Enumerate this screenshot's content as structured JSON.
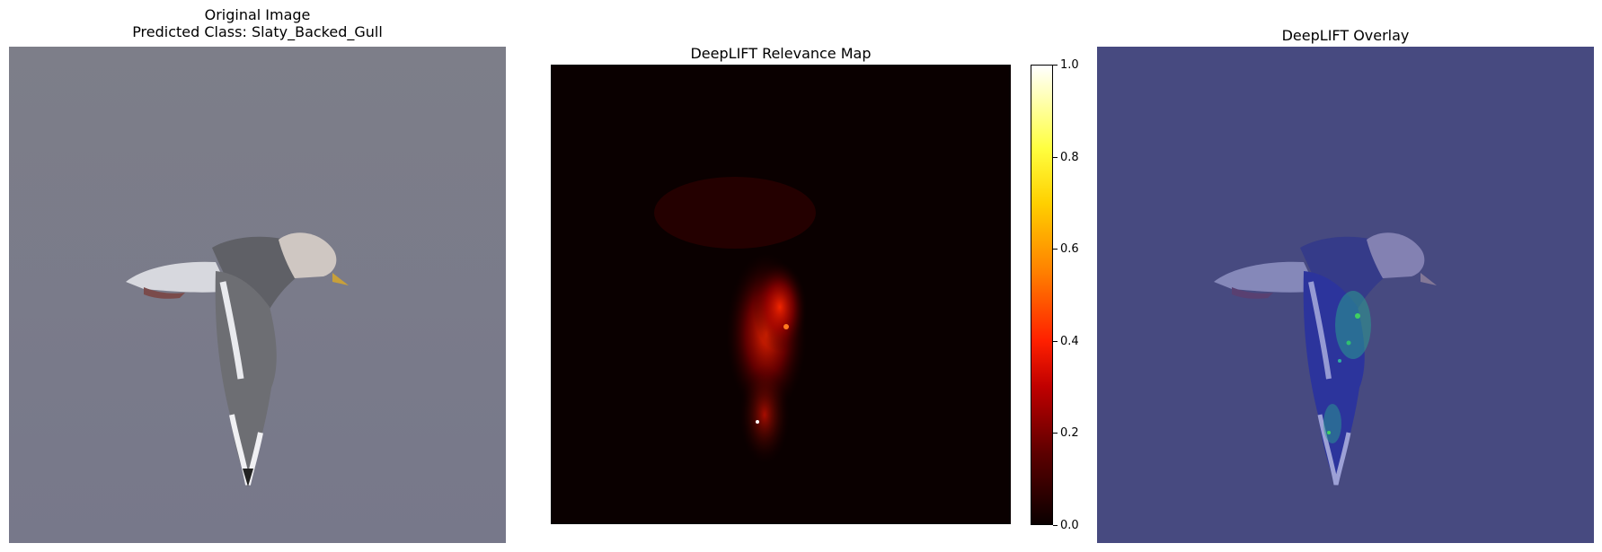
{
  "panels": [
    {
      "title_line1": "Original Image",
      "title_line2": "Predicted Class: Slaty_Backed_Gull"
    },
    {
      "title": "DeepLIFT Relevance Map"
    },
    {
      "title": "DeepLIFT Overlay"
    }
  ],
  "colorbar": {
    "colormap": "hot",
    "range": [
      0.0,
      1.0
    ],
    "ticks": [
      "0.0",
      "0.2",
      "0.4",
      "0.6",
      "0.8",
      "1.0"
    ]
  },
  "colors": {
    "original_background": "#7a7b87",
    "relevance_background": "#0a0000",
    "overlay_background": "#474a80"
  }
}
